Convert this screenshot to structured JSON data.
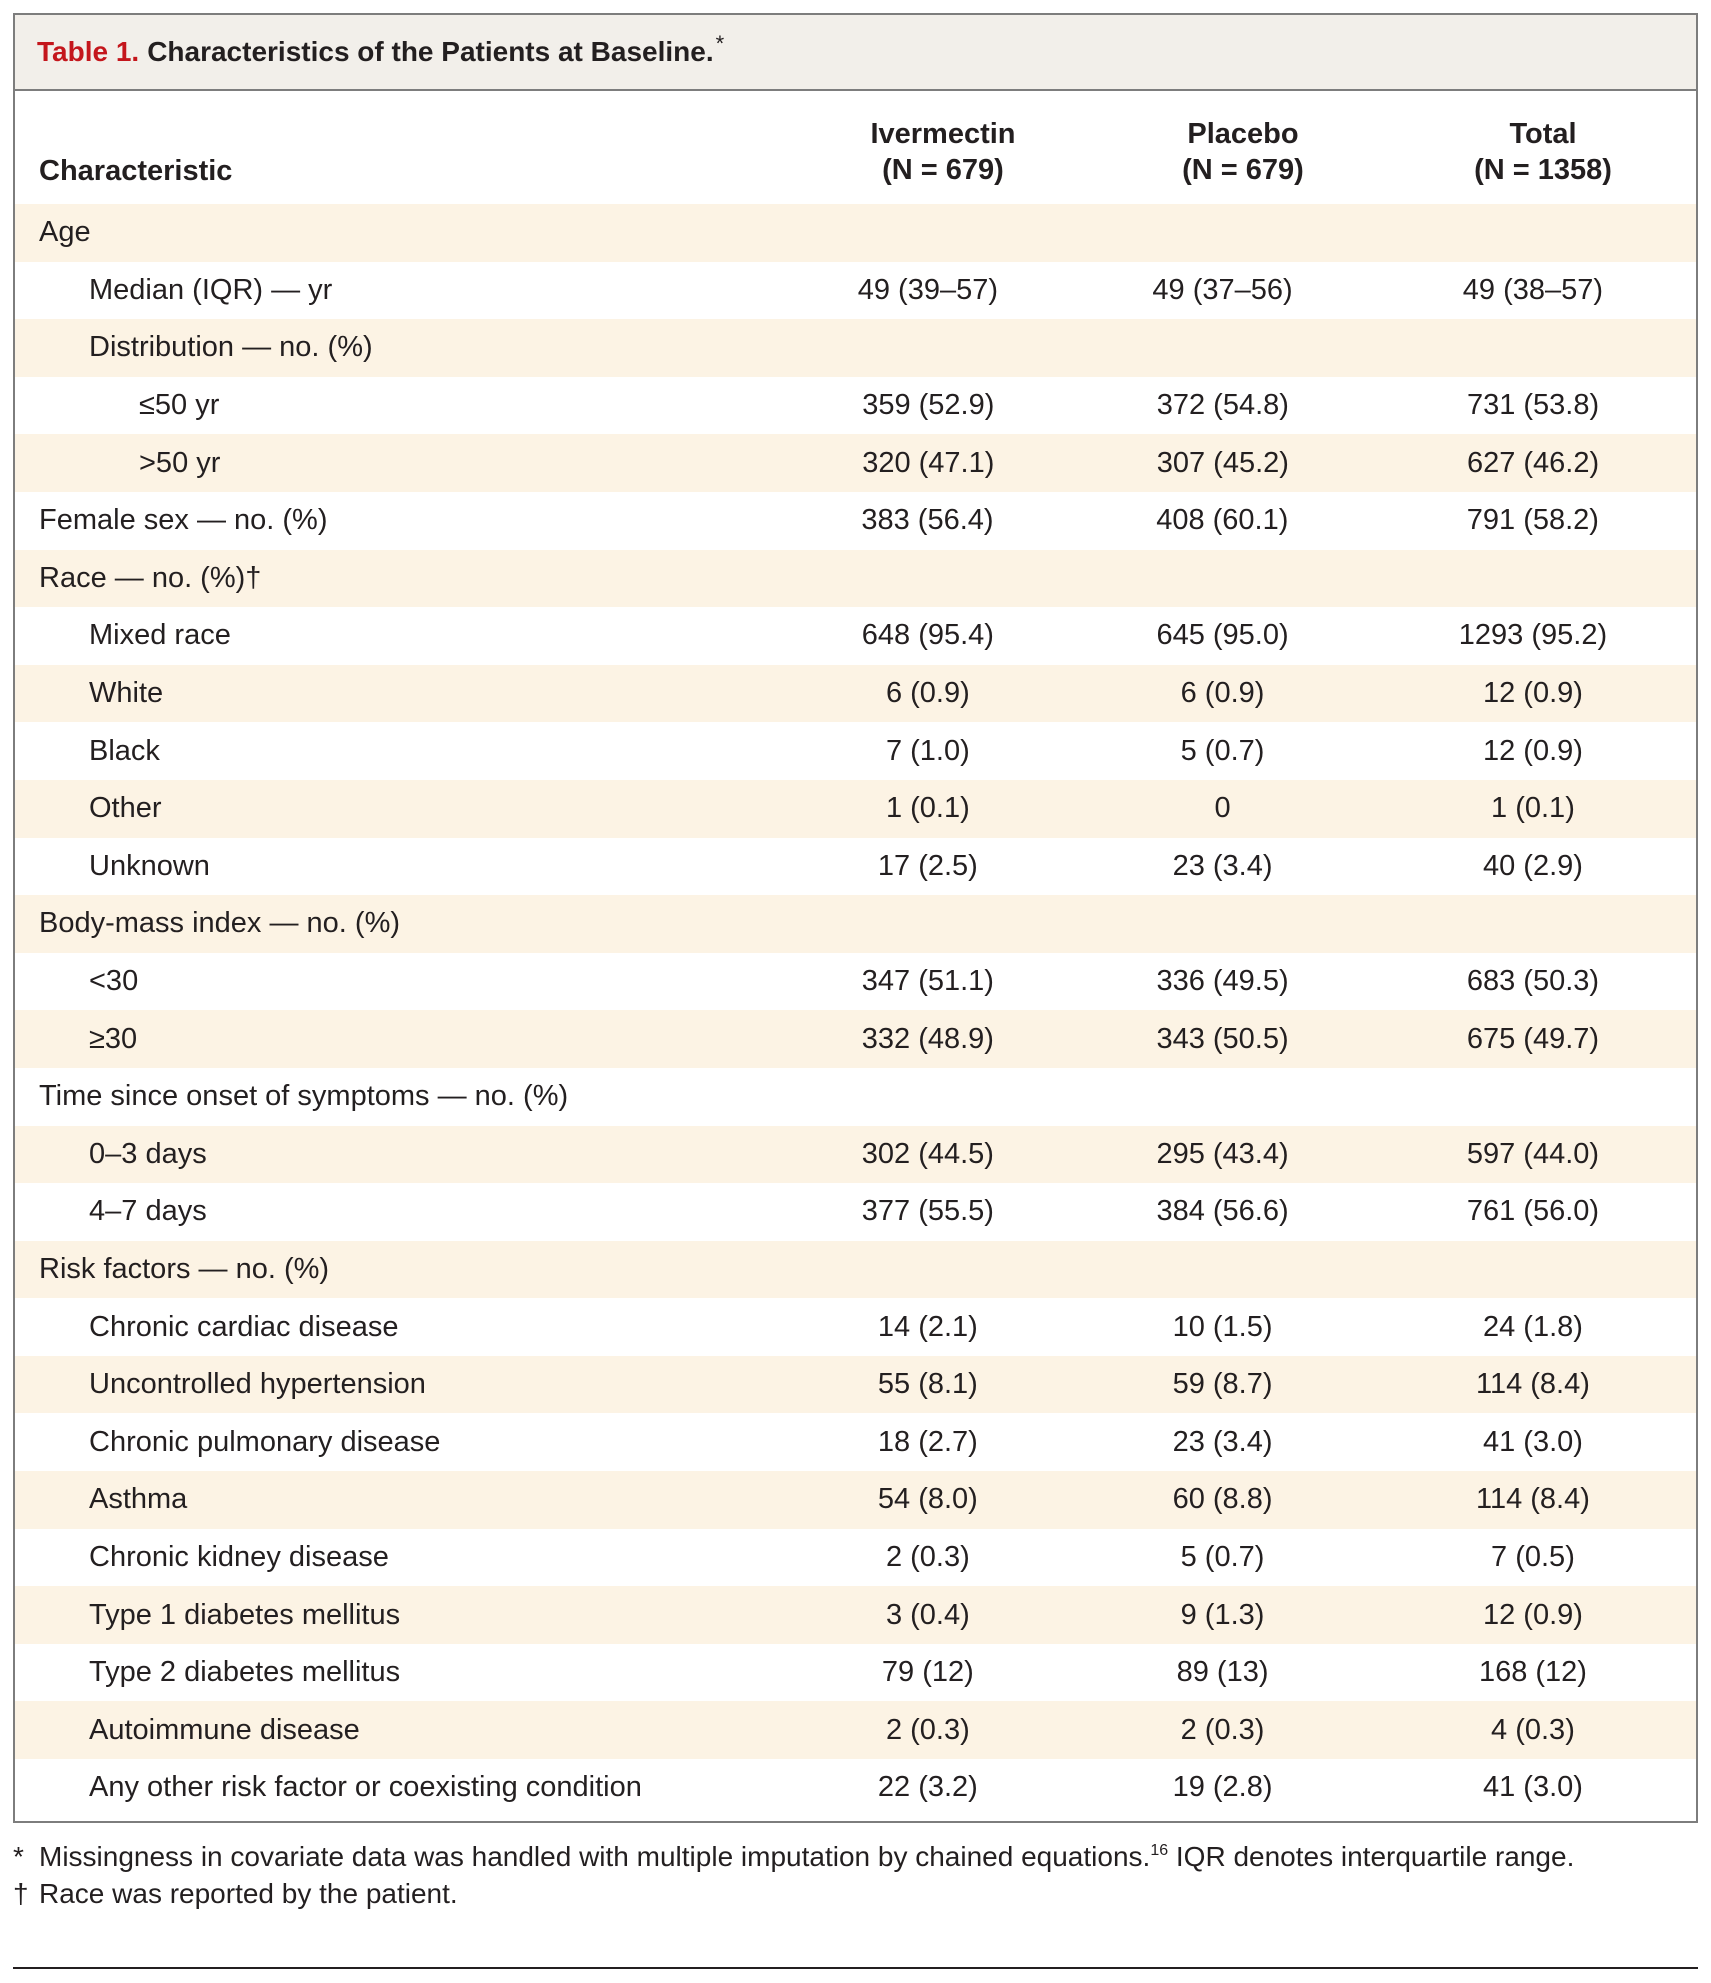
{
  "title": {
    "label": "Table 1.",
    "text": "Characteristics of the Patients at Baseline.",
    "mark": "*"
  },
  "header": {
    "characteristic": "Characteristic",
    "columns": [
      {
        "name": "Ivermectin",
        "n": "(N = 679)"
      },
      {
        "name": "Placebo",
        "n": "(N = 679)"
      },
      {
        "name": "Total",
        "n": "(N = 1358)"
      }
    ]
  },
  "rows": [
    {
      "label": "Age",
      "level": 0,
      "values": [
        "",
        "",
        ""
      ]
    },
    {
      "label": "Median (IQR) — yr",
      "level": 1,
      "values": [
        "49 (39–57)",
        "49 (37–56)",
        "49 (38–57)"
      ]
    },
    {
      "label": "Distribution — no. (%)",
      "level": 1,
      "values": [
        "",
        "",
        ""
      ]
    },
    {
      "label": "≤50 yr",
      "level": 2,
      "values": [
        "359 (52.9)",
        "372 (54.8)",
        "731 (53.8)"
      ]
    },
    {
      "label": ">50 yr",
      "level": 2,
      "values": [
        "320 (47.1)",
        "307 (45.2)",
        "627 (46.2)"
      ]
    },
    {
      "label": "Female sex — no. (%)",
      "level": 0,
      "values": [
        "383 (56.4)",
        "408 (60.1)",
        "791 (58.2)"
      ]
    },
    {
      "label": "Race — no. (%)†",
      "level": 0,
      "values": [
        "",
        "",
        ""
      ]
    },
    {
      "label": "Mixed race",
      "level": 1,
      "values": [
        "648 (95.4)",
        "645 (95.0)",
        "1293 (95.2)"
      ]
    },
    {
      "label": "White",
      "level": 1,
      "values": [
        "6 (0.9)",
        "6 (0.9)",
        "12 (0.9)"
      ]
    },
    {
      "label": "Black",
      "level": 1,
      "values": [
        "7 (1.0)",
        "5 (0.7)",
        "12 (0.9)"
      ]
    },
    {
      "label": "Other",
      "level": 1,
      "values": [
        "1 (0.1)",
        "0",
        "1 (0.1)"
      ]
    },
    {
      "label": "Unknown",
      "level": 1,
      "values": [
        "17 (2.5)",
        "23 (3.4)",
        "40 (2.9)"
      ]
    },
    {
      "label": "Body-mass index — no. (%)",
      "level": 0,
      "values": [
        "",
        "",
        ""
      ]
    },
    {
      "label": "<30",
      "level": 1,
      "values": [
        "347 (51.1)",
        "336 (49.5)",
        "683 (50.3)"
      ]
    },
    {
      "label": "≥30",
      "level": 1,
      "values": [
        "332 (48.9)",
        "343 (50.5)",
        "675 (49.7)"
      ]
    },
    {
      "label": "Time since onset of symptoms — no. (%)",
      "level": 0,
      "values": [
        "",
        "",
        ""
      ]
    },
    {
      "label": "0–3 days",
      "level": 1,
      "values": [
        "302 (44.5)",
        "295 (43.4)",
        "597 (44.0)"
      ]
    },
    {
      "label": "4–7 days",
      "level": 1,
      "values": [
        "377 (55.5)",
        "384 (56.6)",
        "761 (56.0)"
      ]
    },
    {
      "label": "Risk factors — no. (%)",
      "level": 0,
      "values": [
        "",
        "",
        ""
      ]
    },
    {
      "label": "Chronic cardiac disease",
      "level": 1,
      "values": [
        "14 (2.1)",
        "10 (1.5)",
        "24 (1.8)"
      ]
    },
    {
      "label": "Uncontrolled hypertension",
      "level": 1,
      "values": [
        "55 (8.1)",
        "59 (8.7)",
        "114 (8.4)"
      ]
    },
    {
      "label": "Chronic pulmonary disease",
      "level": 1,
      "values": [
        "18 (2.7)",
        "23 (3.4)",
        "41 (3.0)"
      ]
    },
    {
      "label": "Asthma",
      "level": 1,
      "values": [
        "54 (8.0)",
        "60 (8.8)",
        "114 (8.4)"
      ]
    },
    {
      "label": "Chronic kidney disease",
      "level": 1,
      "values": [
        "2 (0.3)",
        "5 (0.7)",
        "7 (0.5)"
      ]
    },
    {
      "label": "Type 1 diabetes mellitus",
      "level": 1,
      "values": [
        "3 (0.4)",
        "9 (1.3)",
        "12 (0.9)"
      ]
    },
    {
      "label": "Type 2 diabetes mellitus",
      "level": 1,
      "values": [
        "79 (12)",
        "89 (13)",
        "168 (12)"
      ]
    },
    {
      "label": "Autoimmune disease",
      "level": 1,
      "values": [
        "2 (0.3)",
        "2 (0.3)",
        "4 (0.3)"
      ]
    },
    {
      "label": "Any other risk factor or coexisting condition",
      "level": 1,
      "values": [
        "22 (3.2)",
        "19 (2.8)",
        "41 (3.0)"
      ]
    }
  ],
  "footnotes": [
    {
      "mark": "*",
      "text": "Missingness in covariate data was handled with multiple imputation by chained equations.",
      "ref": "16",
      "text_after": " IQR denotes interquartile range."
    },
    {
      "mark": "†",
      "text": "Race was reported by the patient.",
      "ref": "",
      "text_after": ""
    }
  ],
  "colors": {
    "title_label": "#c4161c",
    "title_bg": "#f2efea",
    "row_shade": "#fcf3e4",
    "border": "#7d7d7d"
  }
}
